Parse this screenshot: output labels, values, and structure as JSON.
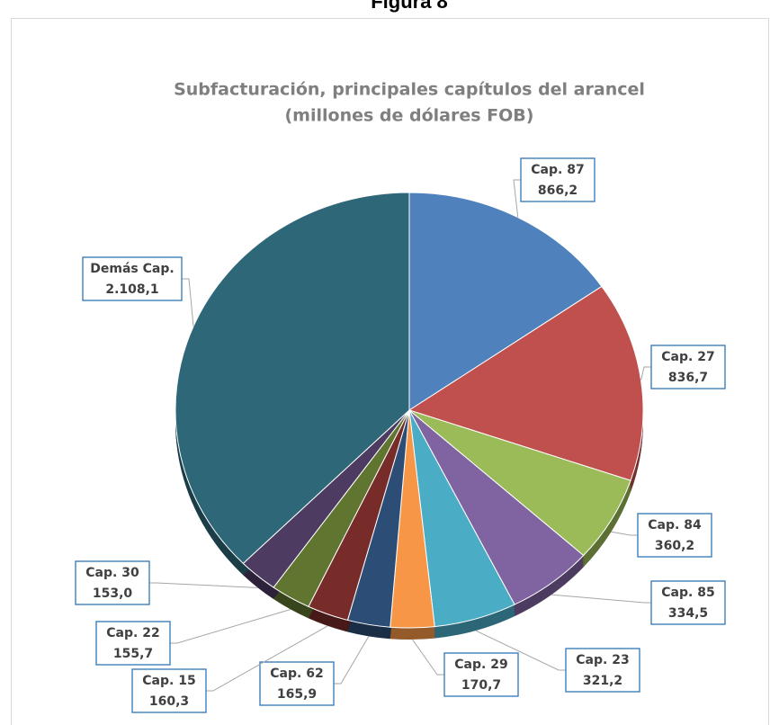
{
  "header": "Figura 8",
  "chart_data": {
    "type": "pie",
    "title": [
      "Subfacturación, principales capítulos del arancel",
      "(millones de dólares FOB)"
    ],
    "categories": [
      "Cap. 87",
      "Cap. 27",
      "Cap. 84",
      "Cap. 85",
      "Cap. 23",
      "Cap. 29",
      "Cap. 62",
      "Cap. 15",
      "Cap. 22",
      "Cap. 30",
      "Demás Cap."
    ],
    "values": [
      866.2,
      836.7,
      360.2,
      334.5,
      321.2,
      170.7,
      165.9,
      160.3,
      155.7,
      153.0,
      2108.1
    ],
    "value_labels": [
      "866,2",
      "836,7",
      "360,2",
      "334,5",
      "321,2",
      "170,7",
      "165,9",
      "160,3",
      "155,7",
      "153,0",
      "2.108,1"
    ],
    "colors": [
      "#4f81bd",
      "#c0504d",
      "#9bbb59",
      "#8064a2",
      "#4bacc6",
      "#f79646",
      "#2c4d75",
      "#772c2a",
      "#5f7530",
      "#4d3b62",
      "#2e6878"
    ]
  }
}
